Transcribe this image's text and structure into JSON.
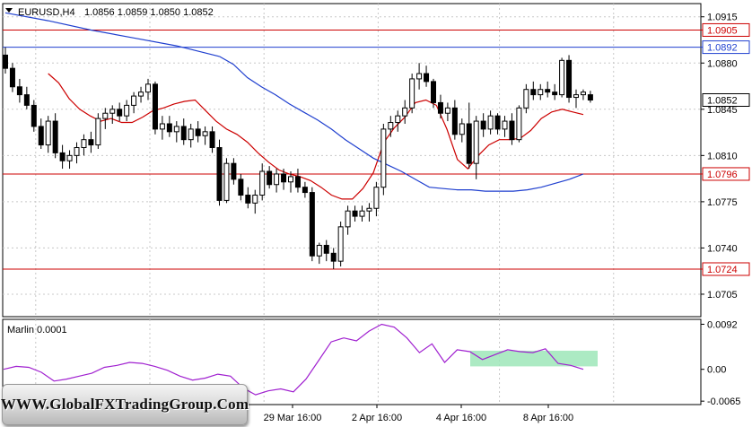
{
  "header": {
    "symbol": "EURUSD,H4",
    "ohlc": "1.0856 1.0859 1.0850 1.0852"
  },
  "indicator": {
    "label": "Marlin 0.0001"
  },
  "watermark": {
    "text": "WWW.GlobalFXTradingGroup.Com"
  },
  "chart_data": [
    {
      "type": "candlestick",
      "title": "EURUSD,H4",
      "ylim": [
        1.0688,
        1.0925
      ],
      "y_ticks": [
        "1.0915",
        "1.0880",
        "1.0845",
        "1.0810",
        "1.0775",
        "1.0740",
        "1.0705"
      ],
      "x_ticks": [
        "29 Mar 16:00",
        "2 Apr 16:00",
        "4 Apr 16:00",
        "8 Apr 16:00"
      ],
      "grid": true,
      "levels": [
        {
          "value": 1.0905,
          "label": "1.0905",
          "color": "#cc0000"
        },
        {
          "value": 1.0892,
          "label": "1.0892",
          "color": "#1f3fcf"
        },
        {
          "value": 1.0796,
          "label": "1.0796",
          "color": "#cc0000"
        },
        {
          "value": 1.0724,
          "label": "1.0724",
          "color": "#cc0000"
        }
      ],
      "current_price": {
        "value": 1.0852,
        "label": "1.0852"
      },
      "candles": [
        [
          1.0886,
          1.0892,
          1.0872,
          1.0876
        ],
        [
          1.0876,
          1.088,
          1.0858,
          1.0862
        ],
        [
          1.0862,
          1.0868,
          1.085,
          1.0856
        ],
        [
          1.0856,
          1.0862,
          1.0845,
          1.0848
        ],
        [
          1.0848,
          1.0852,
          1.0828,
          1.0832
        ],
        [
          1.0832,
          1.0838,
          1.0815,
          1.0818
        ],
        [
          1.0818,
          1.084,
          1.0812,
          1.0836
        ],
        [
          1.0836,
          1.0842,
          1.0808,
          1.0812
        ],
        [
          1.0812,
          1.0818,
          1.08,
          1.0806
        ],
        [
          1.0806,
          1.0814,
          1.08,
          1.081
        ],
        [
          1.081,
          1.082,
          1.0804,
          1.0816
        ],
        [
          1.0816,
          1.0826,
          1.081,
          1.0822
        ],
        [
          1.0822,
          1.0828,
          1.0812,
          1.0818
        ],
        [
          1.0818,
          1.0842,
          1.0815,
          1.0838
        ],
        [
          1.0838,
          1.0846,
          1.083,
          1.0842
        ],
        [
          1.0842,
          1.0848,
          1.0834,
          1.0845
        ],
        [
          1.0845,
          1.085,
          1.0836,
          1.084
        ],
        [
          1.084,
          1.0852,
          1.0836,
          1.0848
        ],
        [
          1.0848,
          1.0858,
          1.0842,
          1.0855
        ],
        [
          1.0855,
          1.0862,
          1.085,
          1.0858
        ],
        [
          1.0858,
          1.0868,
          1.0852,
          1.0864
        ],
        [
          1.0864,
          1.0866,
          1.0826,
          1.083
        ],
        [
          1.083,
          1.084,
          1.0822,
          1.0834
        ],
        [
          1.0834,
          1.084,
          1.0824,
          1.0828
        ],
        [
          1.0828,
          1.0836,
          1.082,
          1.0832
        ],
        [
          1.0832,
          1.0838,
          1.0818,
          1.0822
        ],
        [
          1.0822,
          1.0834,
          1.0816,
          1.083
        ],
        [
          1.083,
          1.0836,
          1.082,
          1.0825
        ],
        [
          1.0825,
          1.0832,
          1.0818,
          1.0828
        ],
        [
          1.0828,
          1.0832,
          1.0812,
          1.0816
        ],
        [
          1.0816,
          1.0822,
          1.0772,
          1.0776
        ],
        [
          1.0776,
          1.0808,
          1.0774,
          1.0804
        ],
        [
          1.0804,
          1.0808,
          1.0788,
          1.0792
        ],
        [
          1.0792,
          1.0796,
          1.0776,
          1.078
        ],
        [
          1.078,
          1.0786,
          1.077,
          1.0774
        ],
        [
          1.0774,
          1.0784,
          1.0766,
          1.078
        ],
        [
          1.078,
          1.0804,
          1.0776,
          1.0798
        ],
        [
          1.0798,
          1.0802,
          1.0785,
          1.0788
        ],
        [
          1.0788,
          1.08,
          1.0782,
          1.0796
        ],
        [
          1.0796,
          1.08,
          1.0784,
          1.079
        ],
        [
          1.079,
          1.0798,
          1.0782,
          1.0794
        ],
        [
          1.0794,
          1.08,
          1.0782,
          1.0786
        ],
        [
          1.0786,
          1.079,
          1.0778,
          1.0782
        ],
        [
          1.0782,
          1.0786,
          1.073,
          1.0734
        ],
        [
          1.0734,
          1.0744,
          1.0728,
          1.0742
        ],
        [
          1.0742,
          1.0746,
          1.073,
          1.0736
        ],
        [
          1.0736,
          1.074,
          1.0724,
          1.073
        ],
        [
          1.073,
          1.076,
          1.0726,
          1.0756
        ],
        [
          1.0756,
          1.0772,
          1.075,
          1.0768
        ],
        [
          1.0768,
          1.0772,
          1.076,
          1.0764
        ],
        [
          1.0764,
          1.0772,
          1.076,
          1.0768
        ],
        [
          1.0768,
          1.0774,
          1.076,
          1.077
        ],
        [
          1.077,
          1.079,
          1.0764,
          1.0786
        ],
        [
          1.0786,
          1.0834,
          1.078,
          1.083
        ],
        [
          1.083,
          1.084,
          1.0824,
          1.0835
        ],
        [
          1.0835,
          1.0844,
          1.0828,
          1.084
        ],
        [
          1.084,
          1.0852,
          1.0834,
          1.0846
        ],
        [
          1.0846,
          1.0872,
          1.0842,
          1.0868
        ],
        [
          1.0868,
          1.088,
          1.086,
          1.0872
        ],
        [
          1.0872,
          1.0878,
          1.0862,
          1.0866
        ],
        [
          1.0866,
          1.0868,
          1.0846,
          1.085
        ],
        [
          1.085,
          1.0856,
          1.0838,
          1.0842
        ],
        [
          1.0842,
          1.085,
          1.0836,
          1.0846
        ],
        [
          1.0846,
          1.0852,
          1.0822,
          1.0826
        ],
        [
          1.0826,
          1.0838,
          1.082,
          1.0834
        ],
        [
          1.0834,
          1.085,
          1.08,
          1.0804
        ],
        [
          1.0804,
          1.084,
          1.0792,
          1.0836
        ],
        [
          1.0836,
          1.0842,
          1.0824,
          1.083
        ],
        [
          1.083,
          1.0844,
          1.0826,
          1.084
        ],
        [
          1.084,
          1.0842,
          1.0826,
          1.083
        ],
        [
          1.083,
          1.084,
          1.0824,
          1.0836
        ],
        [
          1.0836,
          1.0842,
          1.0818,
          1.0822
        ],
        [
          1.0822,
          1.0848,
          1.082,
          1.0846
        ],
        [
          1.0846,
          1.0864,
          1.0842,
          1.086
        ],
        [
          1.086,
          1.0866,
          1.0852,
          1.0856
        ],
        [
          1.0856,
          1.0864,
          1.0852,
          1.086
        ],
        [
          1.086,
          1.0866,
          1.0854,
          1.0858
        ],
        [
          1.0858,
          1.0864,
          1.0852,
          1.0856
        ],
        [
          1.0856,
          1.0884,
          1.0854,
          1.0882
        ],
        [
          1.0882,
          1.0886,
          1.085,
          1.0854
        ],
        [
          1.0854,
          1.086,
          1.0846,
          1.0856
        ],
        [
          1.0856,
          1.086,
          1.0852,
          1.0858
        ],
        [
          1.0856,
          1.0859,
          1.085,
          1.0852
        ]
      ],
      "series": [
        {
          "values": [
            1.0872,
            1.0865,
            1.0853,
            1.0845,
            1.084,
            1.0836,
            1.0838,
            1.0835,
            1.0835,
            1.0839,
            1.0844,
            1.0846,
            1.0849,
            1.0851,
            1.0852,
            1.0844,
            1.0836,
            1.083,
            1.0826,
            1.082,
            1.0812,
            1.0805,
            1.0799,
            1.0796,
            1.0794,
            1.0791,
            1.0786,
            1.078,
            1.0777,
            1.0777,
            1.0785,
            1.0797,
            1.082,
            1.0831,
            1.0839,
            1.085,
            1.0852,
            1.0848,
            1.083,
            1.0807,
            1.08,
            1.081,
            1.0818,
            1.0822,
            1.0822,
            1.0823,
            1.0829,
            1.0838,
            1.0843,
            1.0845,
            1.0843,
            1.0841
          ],
          "color": "#cc0000"
        },
        {
          "values": [
            1.0885,
            1.0879,
            1.0869,
            1.0862,
            1.0856,
            1.0849,
            1.0843,
            1.0837,
            1.083,
            1.0822,
            1.0815,
            1.0808,
            1.0803,
            1.0798,
            1.0792,
            1.0786,
            1.0785,
            1.0784,
            1.0784,
            1.0783,
            1.0783,
            1.0783,
            1.0784,
            1.0786,
            1.0789,
            1.0792,
            1.0796
          ],
          "color": "#1f3fcf"
        }
      ]
    },
    {
      "type": "line",
      "title": "Marlin 0.0001",
      "ylim": [
        -0.0072,
        0.0102
      ],
      "y_ticks": [
        "0.0092",
        "0.00",
        "-0.0065"
      ],
      "series": [
        {
          "values": [
            0.0,
            0.0006,
            0.0004,
            -0.0006,
            -0.0024,
            -0.002,
            -0.0014,
            -0.0008,
            0.0004,
            0.0008,
            0.0014,
            0.0012,
            0.0006,
            -0.0002,
            -0.0014,
            -0.0022,
            -0.0018,
            -0.001,
            -0.0014,
            -0.0038,
            -0.0052,
            -0.0044,
            -0.004,
            -0.0046,
            -0.002,
            0.0018,
            0.0056,
            0.0064,
            0.0058,
            0.0078,
            0.0092,
            0.0086,
            0.0064,
            0.0034,
            0.0052,
            0.0014,
            0.004,
            0.0036,
            0.002,
            0.003,
            0.004,
            0.0036,
            0.0034,
            0.0042,
            0.0012,
            0.0008,
            0.0
          ],
          "color": "#a020d0"
        }
      ],
      "highlight": {
        "color": "#9ee6b8"
      }
    }
  ]
}
